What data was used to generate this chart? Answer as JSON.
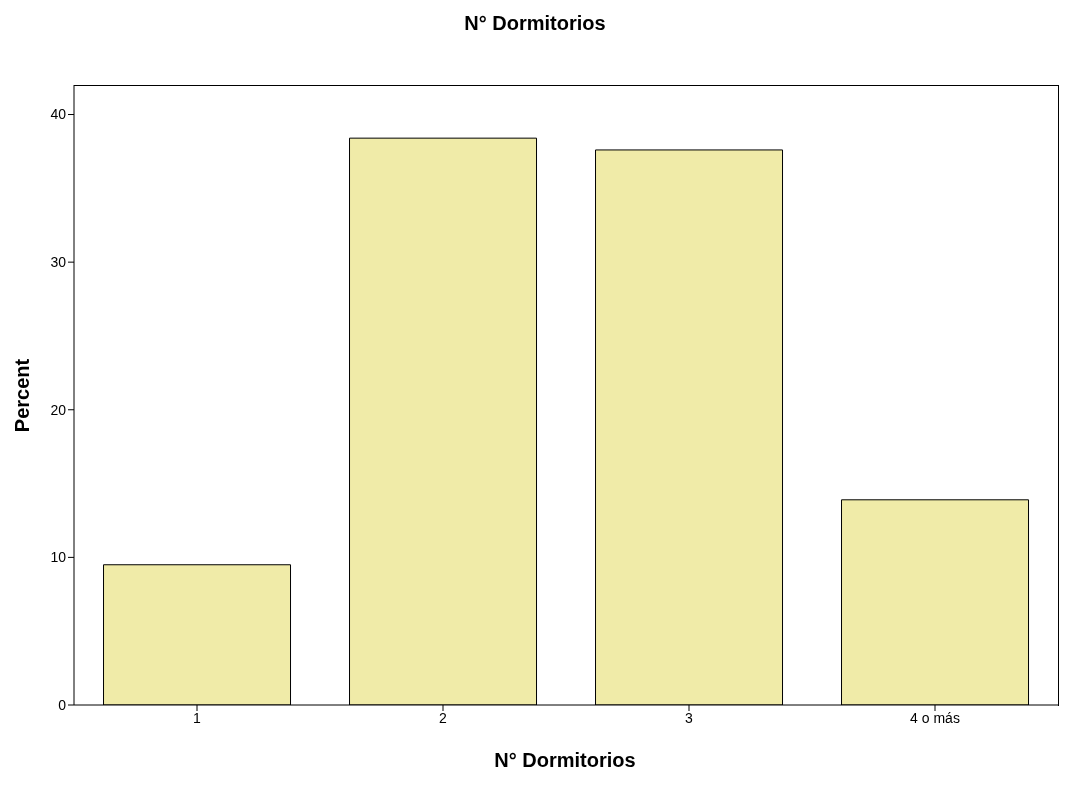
{
  "chart_data": {
    "type": "bar",
    "title": "N° Dormitorios",
    "xlabel": "N° Dormitorios",
    "ylabel": "Percent",
    "categories": [
      "1",
      "2",
      "3",
      "4 o más"
    ],
    "values": [
      9.5,
      38.4,
      37.6,
      13.9
    ],
    "color": "#f0eba8",
    "ylim": [
      0,
      42
    ],
    "yticks": [
      0,
      10,
      20,
      30,
      40
    ],
    "grid": false
  }
}
